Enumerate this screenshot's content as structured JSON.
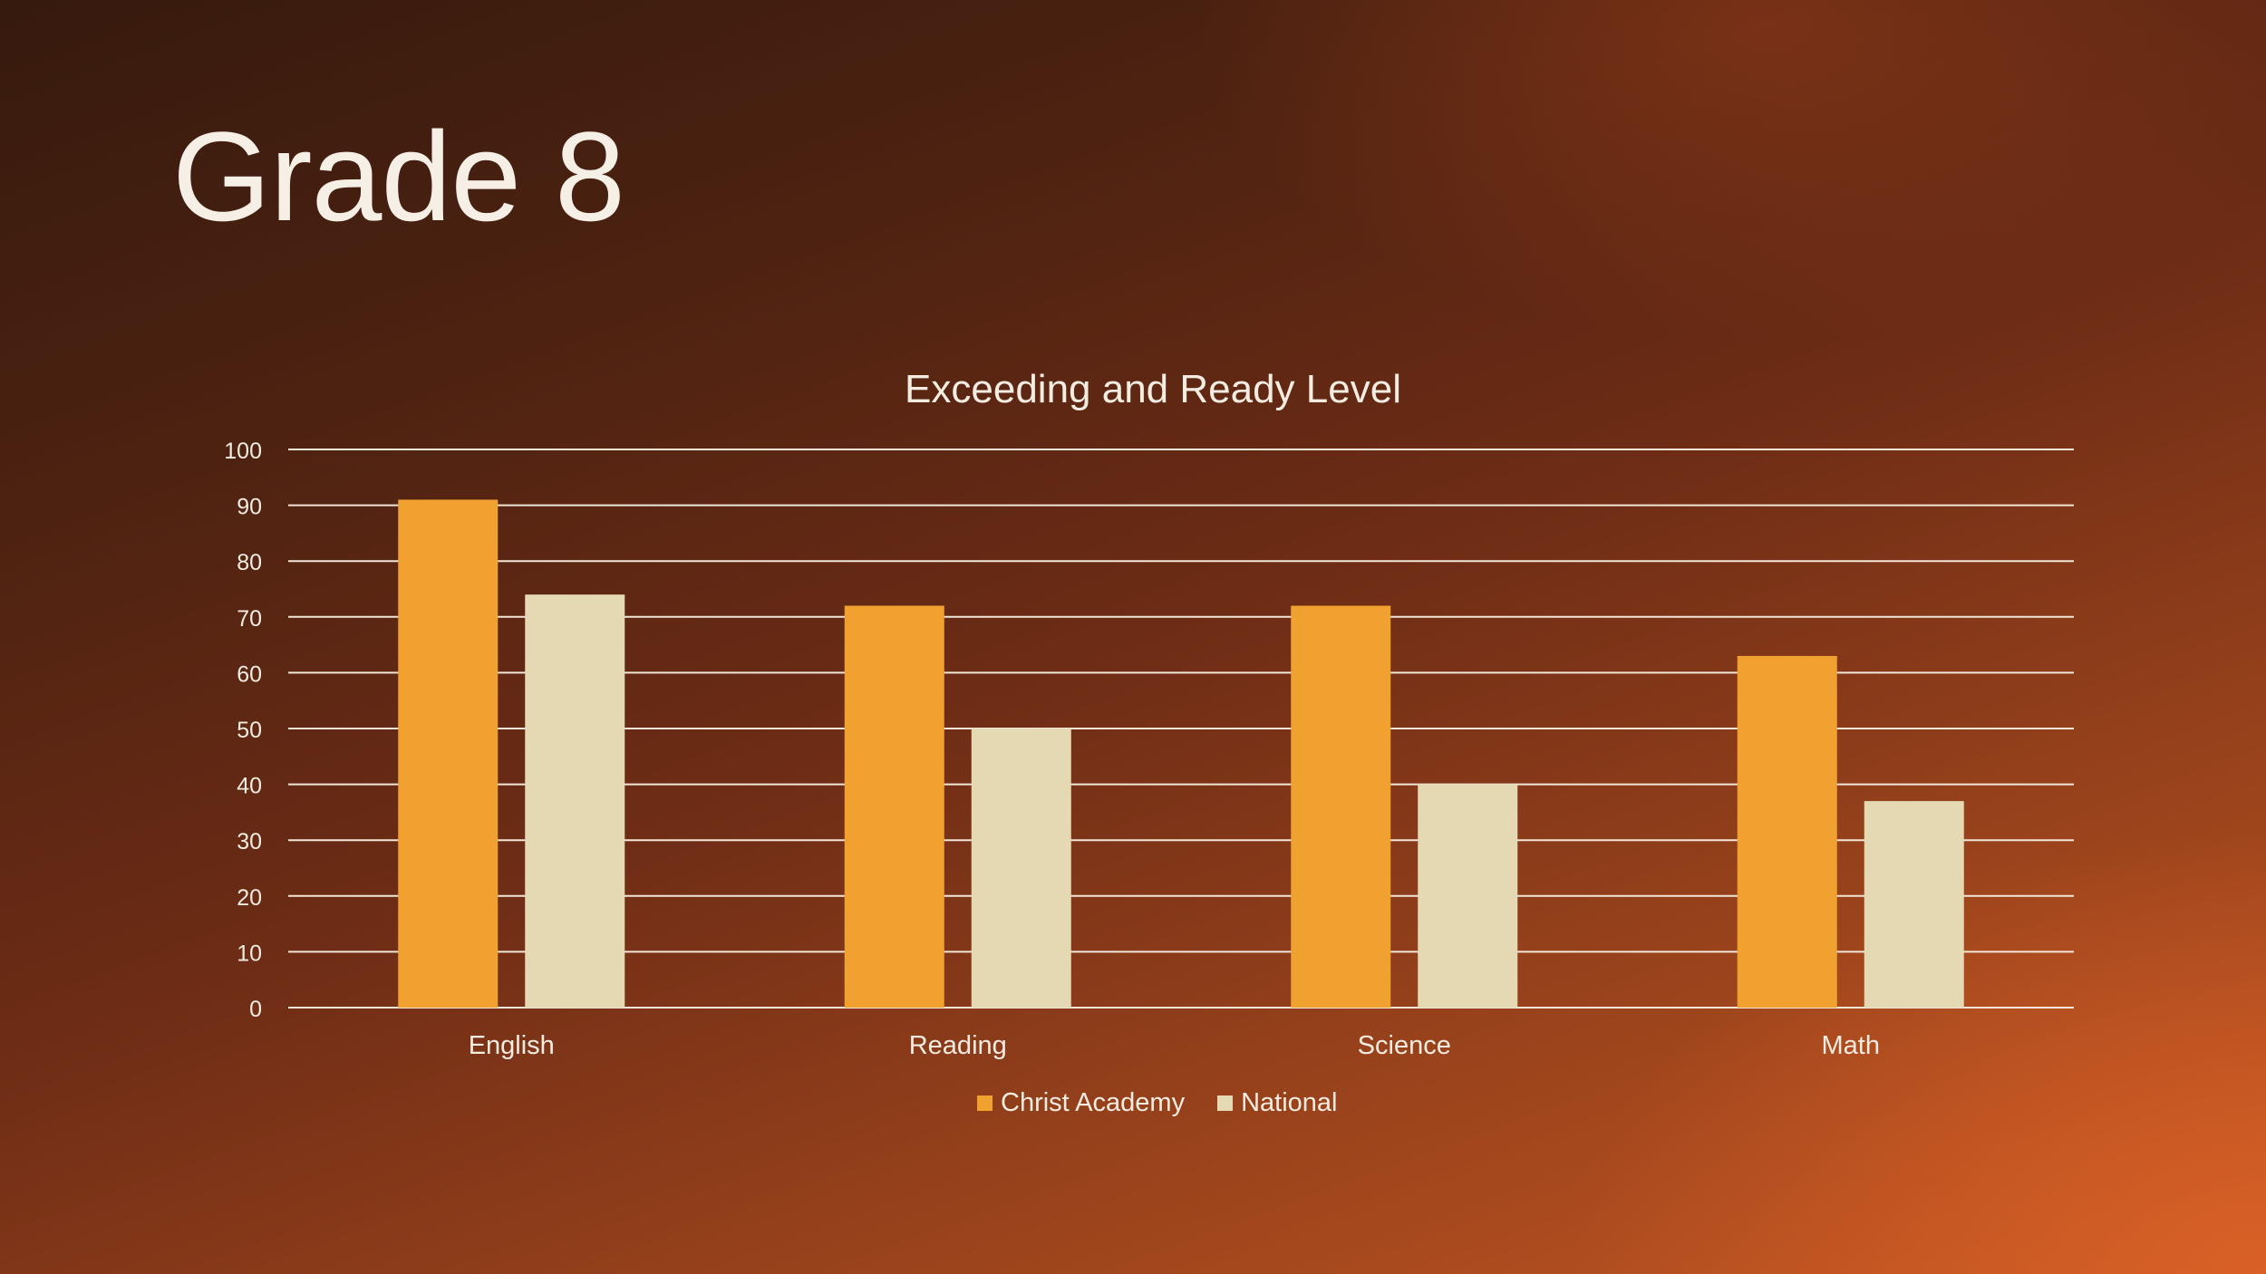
{
  "slide": {
    "title": "Grade 8"
  },
  "colors": {
    "christ_academy": "#f0a130",
    "national": "#e5d9b3",
    "gridline": "#f2e6d8",
    "text": "#f4ece0"
  },
  "chart_data": {
    "type": "bar",
    "title": "Exceeding and Ready Level",
    "xlabel": "",
    "ylabel": "",
    "ylim": [
      0,
      100
    ],
    "yticks": [
      0,
      10,
      20,
      30,
      40,
      50,
      60,
      70,
      80,
      90,
      100
    ],
    "grid": true,
    "legend_position": "bottom",
    "categories": [
      "English",
      "Reading",
      "Science",
      "Math"
    ],
    "series": [
      {
        "name": "Christ Academy",
        "values": [
          91,
          72,
          72,
          63
        ]
      },
      {
        "name": "National",
        "values": [
          74,
          50,
          40,
          37
        ]
      }
    ]
  }
}
